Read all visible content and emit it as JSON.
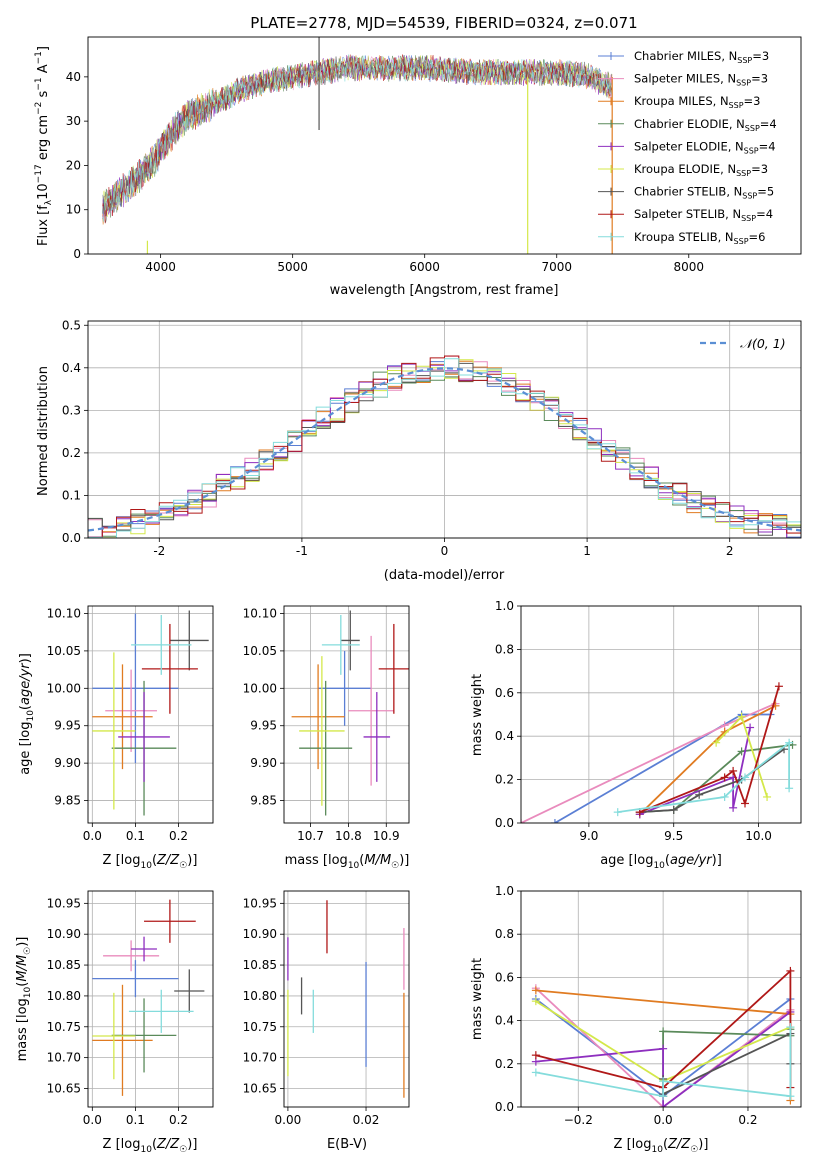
{
  "colors": {
    "Chabrier MILES": "#5b7fd4",
    "Salpeter MILES": "#e98bbd",
    "Kroupa MILES": "#e07b21",
    "Chabrier ELODIE": "#5a8a5a",
    "Salpeter ELODIE": "#8e2fbf",
    "Kroupa ELODIE": "#d4e84a",
    "Chabrier STELIB": "#555555",
    "Salpeter STELIB": "#b01818",
    "Kroupa STELIB": "#84dcdc"
  },
  "chart_data": [
    {
      "type": "line",
      "title": "PLATE=2778, MJD=54539, FIBERID=0324, z=0.071",
      "xlabel": "wavelength [Angstrom, rest frame]",
      "ylabel": "Flux [f$_\\lambda$10$^{-17}$ erg cm$^{-2}$ s$^{-1}$ A$^{-1}$]",
      "ylabel_parts": {
        "a": "Flux [f",
        "b": "λ",
        "c": "10",
        "d": "−17",
        "e": " erg cm",
        "f": "−2",
        "g": " s",
        "h": "−1",
        "i": " A",
        "j": "−1",
        "k": "]"
      },
      "xlim": [
        3450,
        8850
      ],
      "ylim": [
        0,
        49
      ],
      "xticks": [
        4000,
        5000,
        6000,
        7000,
        8000
      ],
      "yticks": [
        0,
        10,
        20,
        30,
        40
      ],
      "legend_position": "top-right",
      "continuum_x": [
        3550,
        3700,
        3850,
        3950,
        4050,
        4200,
        4400,
        4600,
        4800,
        5000,
        5200,
        5400,
        5600,
        5800,
        6000,
        6200,
        6400,
        6600,
        6800,
        7000,
        7200,
        7400
      ],
      "continuum_y": [
        10,
        14,
        18,
        21,
        26,
        31,
        34,
        37,
        39,
        40,
        41,
        42,
        42,
        42,
        42,
        41.5,
        41,
        41,
        41,
        41,
        40.5,
        38
      ],
      "series": [
        {
          "label_base": "Chabrier MILES, N",
          "label_sub": "SSP",
          "label_n": "=3"
        },
        {
          "label_base": "Salpeter MILES, N",
          "label_sub": "SSP",
          "label_n": "=3"
        },
        {
          "label_base": "Kroupa MILES, N",
          "label_sub": "SSP",
          "label_n": "=3"
        },
        {
          "label_base": "Chabrier ELODIE, N",
          "label_sub": "SSP",
          "label_n": "=4"
        },
        {
          "label_base": "Salpeter ELODIE, N",
          "label_sub": "SSP",
          "label_n": "=4"
        },
        {
          "label_base": "Kroupa ELODIE, N",
          "label_sub": "SSP",
          "label_n": "=3"
        },
        {
          "label_base": "Chabrier STELIB, N",
          "label_sub": "SSP",
          "label_n": "=5"
        },
        {
          "label_base": "Salpeter STELIB, N",
          "label_sub": "SSP",
          "label_n": "=4"
        },
        {
          "label_base": "Kroupa STELIB, N",
          "label_sub": "SSP",
          "label_n": "=6"
        }
      ],
      "spikes": [
        {
          "x": 5200,
          "y_top": 49,
          "y_bottom": 28,
          "color": "#555555"
        },
        {
          "x": 3900,
          "y_top": 3,
          "y_bottom": 0,
          "color": "#d4e84a"
        },
        {
          "x": 6780,
          "y_top": 40,
          "y_bottom": 0,
          "color": "#d4e84a"
        },
        {
          "x": 7420,
          "y_top": 40,
          "y_bottom": 0,
          "color": "#e07b21"
        }
      ]
    },
    {
      "type": "step-histogram",
      "xlabel": "(data-model)/error",
      "ylabel": "Normed distribution",
      "xlim": [
        -2.5,
        2.5
      ],
      "ylim": [
        0,
        0.51
      ],
      "xticks": [
        -2,
        -1,
        0,
        1,
        2
      ],
      "yticks": [
        0.0,
        0.1,
        0.2,
        0.3,
        0.4,
        0.5
      ],
      "grid": true,
      "bin_width": 0.1,
      "bin_start": -2.5,
      "legend_position": "top-right",
      "reference_curve": {
        "name": "𝒩(0, 1)",
        "mean": 0,
        "sigma": 1,
        "color": "#5b8fd4",
        "dash": "6,4"
      }
    },
    {
      "type": "errorbar",
      "xlabel": "Z [log10(Z/Z☉)]",
      "xlabel_parts": {
        "a": "Z [log",
        "b": "10",
        "c": "(",
        "d": "Z/Z",
        "e": "☉",
        "f": ")]"
      },
      "ylabel": "age  [log10(age/yr)]",
      "ylabel_parts": {
        "a": "age  [log",
        "b": "10",
        "c": "(",
        "d": "age/yr",
        "e": ")]"
      },
      "xlim": [
        -0.01,
        0.28
      ],
      "ylim": [
        9.82,
        10.11
      ],
      "xticks": [
        0.0,
        0.1,
        0.2
      ],
      "xtick_labels": [
        "0.0",
        "0.1",
        "0.2"
      ],
      "yticks": [
        9.85,
        9.9,
        9.95,
        10.0,
        10.05,
        10.1
      ],
      "ytick_labels": [
        "9.85",
        "9.90",
        "9.95",
        "10.00",
        "10.05",
        "10.10"
      ],
      "grid": true,
      "points": [
        {
          "x": 0.1,
          "y": 10.0,
          "xerr": 0.1,
          "yerr": 0.1,
          "color": "#5b7fd4"
        },
        {
          "x": 0.09,
          "y": 9.97,
          "xerr": 0.06,
          "yerr": 0.055,
          "color": "#e98bbd"
        },
        {
          "x": 0.07,
          "y": 9.962,
          "xerr": 0.07,
          "yerr": 0.07,
          "color": "#e07b21"
        },
        {
          "x": 0.12,
          "y": 9.92,
          "xerr": 0.075,
          "yerr": 0.09,
          "color": "#5a8a5a"
        },
        {
          "x": 0.12,
          "y": 9.935,
          "xerr": 0.06,
          "yerr": 0.06,
          "color": "#8e2fbf"
        },
        {
          "x": 0.05,
          "y": 9.943,
          "xerr": 0.05,
          "yerr": 0.105,
          "color": "#d4e84a"
        },
        {
          "x": 0.225,
          "y": 10.064,
          "xerr": 0.045,
          "yerr": 0.04,
          "color": "#555555"
        },
        {
          "x": 0.18,
          "y": 10.026,
          "xerr": 0.065,
          "yerr": 0.06,
          "color": "#b01818"
        },
        {
          "x": 0.16,
          "y": 10.058,
          "xerr": 0.07,
          "yerr": 0.04,
          "color": "#84dcdc"
        }
      ]
    },
    {
      "type": "errorbar",
      "xlabel": "mass [log10(M/M☉)]",
      "xlabel_parts": {
        "a": "mass [log",
        "b": "10",
        "c": "(",
        "d": "M/M",
        "e": "☉",
        "f": ")]"
      },
      "xlim": [
        10.63,
        10.96
      ],
      "ylim": [
        9.82,
        10.11
      ],
      "xticks": [
        10.7,
        10.8,
        10.9
      ],
      "xtick_labels": [
        "10.7",
        "10.8",
        "10.9"
      ],
      "yticks": [
        9.85,
        9.9,
        9.95,
        10.0,
        10.05,
        10.1
      ],
      "ytick_labels": [
        "9.85",
        "9.90",
        "9.95",
        "10.00",
        "10.05",
        "10.10"
      ],
      "grid": true,
      "points": [
        {
          "x": 10.79,
          "y": 10.0,
          "xerr": 0.07,
          "yerr": 0.05,
          "color": "#5b7fd4"
        },
        {
          "x": 10.86,
          "y": 9.97,
          "xerr": 0.06,
          "yerr": 0.1,
          "color": "#e98bbd"
        },
        {
          "x": 10.72,
          "y": 9.962,
          "xerr": 0.07,
          "yerr": 0.07,
          "color": "#e07b21"
        },
        {
          "x": 10.74,
          "y": 9.92,
          "xerr": 0.07,
          "yerr": 0.09,
          "color": "#5a8a5a"
        },
        {
          "x": 10.875,
          "y": 9.935,
          "xerr": 0.035,
          "yerr": 0.06,
          "color": "#8e2fbf"
        },
        {
          "x": 10.73,
          "y": 9.943,
          "xerr": 0.06,
          "yerr": 0.1,
          "color": "#d4e84a"
        },
        {
          "x": 10.805,
          "y": 10.064,
          "xerr": 0.025,
          "yerr": 0.04,
          "color": "#555555"
        },
        {
          "x": 10.92,
          "y": 10.026,
          "xerr": 0.04,
          "yerr": 0.06,
          "color": "#b01818"
        },
        {
          "x": 10.78,
          "y": 10.058,
          "xerr": 0.05,
          "yerr": 0.04,
          "color": "#84dcdc"
        }
      ]
    },
    {
      "type": "line",
      "xlabel": "age  [log10(age/yr)]",
      "xlabel_parts": {
        "a": "age  [log",
        "b": "10",
        "c": "(",
        "d": "age/yr",
        "e": ")]"
      },
      "ylabel": "mass weight",
      "xlim": [
        8.6,
        10.25
      ],
      "ylim": [
        0,
        1.0
      ],
      "xticks": [
        9.0,
        9.5,
        10.0
      ],
      "xtick_labels": [
        "9.0",
        "9.5",
        "10.0"
      ],
      "yticks": [
        0.0,
        0.2,
        0.4,
        0.6,
        0.8,
        1.0
      ],
      "ytick_labels": [
        "0.0",
        "0.2",
        "0.4",
        "0.6",
        "0.8",
        "1.0"
      ],
      "grid": true,
      "series": [
        {
          "color": "#5b7fd4",
          "x": [
            8.8,
            9.9,
            10.07
          ],
          "y": [
            0.0,
            0.5,
            0.5
          ]
        },
        {
          "color": "#e98bbd",
          "x": [
            8.6,
            9.8,
            10.1
          ],
          "y": [
            0.0,
            0.45,
            0.55
          ]
        },
        {
          "color": "#e07b21",
          "x": [
            9.3,
            9.8,
            10.1
          ],
          "y": [
            0.04,
            0.42,
            0.54
          ]
        },
        {
          "color": "#5a8a5a",
          "x": [
            9.3,
            9.5,
            9.9,
            10.2
          ],
          "y": [
            0.05,
            0.06,
            0.33,
            0.36
          ]
        },
        {
          "color": "#8e2fbf",
          "x": [
            9.3,
            9.85,
            9.85,
            9.95
          ],
          "y": [
            0.04,
            0.21,
            0.07,
            0.44
          ]
        },
        {
          "color": "#d4e84a",
          "x": [
            9.75,
            9.9,
            10.05
          ],
          "y": [
            0.37,
            0.49,
            0.12
          ]
        },
        {
          "color": "#555555",
          "x": [
            9.3,
            9.5,
            9.65,
            9.9,
            10.15
          ],
          "y": [
            0.05,
            0.06,
            0.13,
            0.2,
            0.34
          ]
        },
        {
          "color": "#b01818",
          "x": [
            9.3,
            9.8,
            9.85,
            9.92,
            10.12
          ],
          "y": [
            0.05,
            0.21,
            0.24,
            0.09,
            0.63
          ]
        },
        {
          "color": "#84dcdc",
          "x": [
            9.17,
            9.8,
            9.92,
            10.18,
            10.18
          ],
          "y": [
            0.05,
            0.12,
            0.21,
            0.37,
            0.16
          ]
        }
      ]
    },
    {
      "type": "errorbar",
      "xlabel": "Z [log10(Z/Z☉)]",
      "xlabel_parts": {
        "a": "Z [log",
        "b": "10",
        "c": "(",
        "d": "Z/Z",
        "e": "☉",
        "f": ")]"
      },
      "ylabel": "mass [log10(M/M☉)]",
      "ylabel_parts": {
        "a": "mass [log",
        "b": "10",
        "c": "(",
        "d": "M/M",
        "e": "☉",
        "f": ")]"
      },
      "xlim": [
        -0.01,
        0.28
      ],
      "ylim": [
        10.62,
        10.97
      ],
      "xticks": [
        0.0,
        0.1,
        0.2
      ],
      "xtick_labels": [
        "0.0",
        "0.1",
        "0.2"
      ],
      "yticks": [
        10.65,
        10.7,
        10.75,
        10.8,
        10.85,
        10.9,
        10.95
      ],
      "ytick_labels": [
        "10.65",
        "10.70",
        "10.75",
        "10.80",
        "10.85",
        "10.90",
        "10.95"
      ],
      "grid": true,
      "points": [
        {
          "x": 0.1,
          "y": 10.828,
          "xerr": 0.1,
          "yerr": 0.03,
          "color": "#5b7fd4"
        },
        {
          "x": 0.09,
          "y": 10.865,
          "xerr": 0.065,
          "yerr": 0.025,
          "color": "#e98bbd"
        },
        {
          "x": 0.07,
          "y": 10.728,
          "xerr": 0.07,
          "yerr": 0.09,
          "color": "#e07b21"
        },
        {
          "x": 0.12,
          "y": 10.736,
          "xerr": 0.075,
          "yerr": 0.06,
          "color": "#5a8a5a"
        },
        {
          "x": 0.12,
          "y": 10.876,
          "xerr": 0.03,
          "yerr": 0.02,
          "color": "#8e2fbf"
        },
        {
          "x": 0.05,
          "y": 10.735,
          "xerr": 0.05,
          "yerr": 0.07,
          "color": "#d4e84a"
        },
        {
          "x": 0.225,
          "y": 10.808,
          "xerr": 0.035,
          "yerr": 0.035,
          "color": "#555555"
        },
        {
          "x": 0.18,
          "y": 10.921,
          "xerr": 0.06,
          "yerr": 0.035,
          "color": "#b01818"
        },
        {
          "x": 0.16,
          "y": 10.775,
          "xerr": 0.075,
          "yerr": 0.035,
          "color": "#84dcdc"
        }
      ]
    },
    {
      "type": "errorbar",
      "xlabel": "E(B-V)",
      "xlim": [
        -0.001,
        0.031
      ],
      "ylim": [
        10.62,
        10.97
      ],
      "xticks": [
        0.0,
        0.02
      ],
      "xtick_labels": [
        "0.00",
        "0.02"
      ],
      "yticks": [
        10.65,
        10.7,
        10.75,
        10.8,
        10.85,
        10.9,
        10.95
      ],
      "ytick_labels": [
        "10.65",
        "10.70",
        "10.75",
        "10.80",
        "10.85",
        "10.90",
        "10.95"
      ],
      "grid": true,
      "points": [
        {
          "x": 0.02,
          "y": 10.77,
          "yerr": 0.085,
          "color": "#5b7fd4"
        },
        {
          "x": 0.0297,
          "y": 10.86,
          "yerr": 0.05,
          "color": "#e98bbd"
        },
        {
          "x": 0.0297,
          "y": 10.72,
          "yerr": 0.085,
          "color": "#e07b21"
        },
        {
          "x": 0.0,
          "y": 10.86,
          "yerr": 0.035,
          "color": "#8e2fbf"
        },
        {
          "x": 0.0,
          "y": 10.74,
          "yerr": 0.07,
          "color": "#d4e84a"
        },
        {
          "x": 0.0035,
          "y": 10.8,
          "yerr": 0.03,
          "color": "#555555"
        },
        {
          "x": 0.01,
          "y": 10.912,
          "yerr": 0.043,
          "color": "#b01818"
        },
        {
          "x": 0.0065,
          "y": 10.775,
          "yerr": 0.035,
          "color": "#84dcdc"
        }
      ]
    },
    {
      "type": "line",
      "xlabel": "Z [log10(Z/Z☉)]",
      "xlabel_parts": {
        "a": "Z [log",
        "b": "10",
        "c": "(",
        "d": "Z/Z",
        "e": "☉",
        "f": ")]"
      },
      "ylabel": "mass weight",
      "xlim": [
        -0.335,
        0.325
      ],
      "ylim": [
        0,
        1.0
      ],
      "xticks": [
        -0.2,
        0.0,
        0.2
      ],
      "xtick_labels": [
        "−0.2",
        "0.0",
        "0.2"
      ],
      "yticks": [
        0.0,
        0.2,
        0.4,
        0.6,
        0.8,
        1.0
      ],
      "ytick_labels": [
        "0.0",
        "0.2",
        "0.4",
        "0.6",
        "0.8",
        "1.0"
      ],
      "grid": true,
      "series": [
        {
          "color": "#5b7fd4",
          "x": [
            -0.3,
            0.0,
            0.3
          ],
          "y": [
            0.5,
            0.05,
            0.5
          ]
        },
        {
          "color": "#e98bbd",
          "x": [
            -0.3,
            0.0,
            0.3
          ],
          "y": [
            0.55,
            0.0,
            0.45
          ]
        },
        {
          "color": "#e07b21",
          "x": [
            -0.3,
            0.3,
            0.3
          ],
          "y": [
            0.54,
            0.43,
            0.03
          ]
        },
        {
          "color": "#5a8a5a",
          "x": [
            0.0,
            0.0,
            0.3,
            0.3
          ],
          "y": [
            0.05,
            0.35,
            0.33,
            0.36
          ]
        },
        {
          "color": "#8e2fbf",
          "x": [
            -0.3,
            0.0,
            0.0,
            0.3
          ],
          "y": [
            0.21,
            0.27,
            0.0,
            0.44
          ]
        },
        {
          "color": "#d4e84a",
          "x": [
            -0.3,
            0.0,
            0.3
          ],
          "y": [
            0.49,
            0.12,
            0.37
          ]
        },
        {
          "color": "#555555",
          "x": [
            0.0,
            0.0,
            0.3,
            0.3
          ],
          "y": [
            0.13,
            0.06,
            0.34,
            0.2
          ]
        },
        {
          "color": "#b01818",
          "x": [
            -0.3,
            0.0,
            0.3,
            0.3
          ],
          "y": [
            0.24,
            0.09,
            0.63,
            0.09
          ]
        },
        {
          "color": "#84dcdc",
          "x": [
            -0.3,
            0.0,
            0.0,
            0.3,
            0.3
          ],
          "y": [
            0.16,
            0.05,
            0.12,
            0.05,
            0.37
          ]
        }
      ]
    }
  ]
}
